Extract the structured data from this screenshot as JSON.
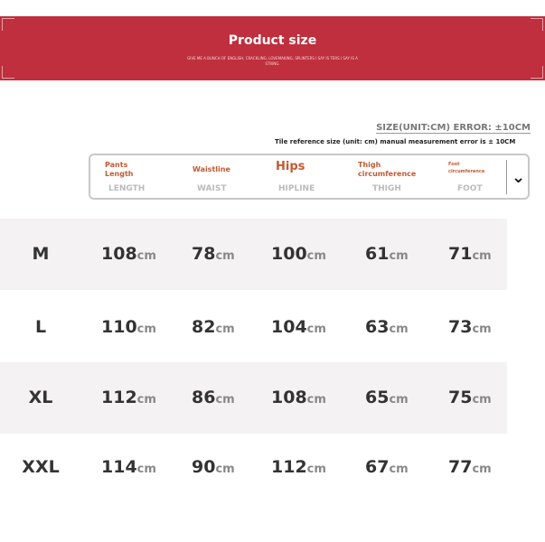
{
  "banner": {
    "title": "Product size",
    "subtitle": "GIVE ME A BUNCH OF ENGLISH, CRACKLING, LOVEMAKING, SPLINTERS I SAY IS TERS I SAY IS A STRING.",
    "color": "#bf2f3d"
  },
  "unit_label": "SIZE(UNIT:CM) ERROR: ±10CM",
  "note": "Tile reference size (unit: cm) manual measurement error is ± 10CM",
  "columns": [
    {
      "cn": "Pants Length",
      "en": "LENGTH"
    },
    {
      "cn": "Waistline",
      "en": "WAIST"
    },
    {
      "cn": "Hips",
      "en": "HIPLINE"
    },
    {
      "cn": "Thigh circumference",
      "en": "THIGH"
    },
    {
      "cn": "Foot circumference",
      "en": "FOOT"
    }
  ],
  "unit": "cm",
  "rows": [
    {
      "size": "M",
      "values": [
        "108",
        "78",
        "100",
        "61",
        "71"
      ]
    },
    {
      "size": "L",
      "values": [
        "110",
        "82",
        "104",
        "63",
        "73"
      ]
    },
    {
      "size": "XL",
      "values": [
        "112",
        "86",
        "108",
        "65",
        "75"
      ]
    },
    {
      "size": "XXL",
      "values": [
        "114",
        "90",
        "112",
        "67",
        "77"
      ]
    }
  ]
}
